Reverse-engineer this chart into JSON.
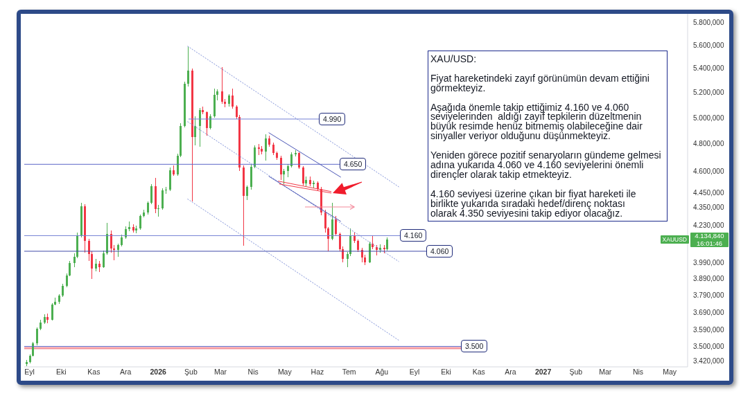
{
  "chart_data": {
    "type": "candlestick",
    "x": [
      "2025-08-29",
      "2025-09-01",
      "2025-09-04",
      "2025-09-08",
      "2025-09-11",
      "2025-09-15",
      "2025-09-18",
      "2025-09-22",
      "2025-09-25",
      "2025-09-29",
      "2025-10-02",
      "2025-10-06",
      "2025-10-09",
      "2025-10-13",
      "2025-10-16",
      "2025-10-20",
      "2025-10-23",
      "2025-10-27",
      "2025-10-30",
      "2025-11-03",
      "2025-11-06",
      "2025-11-10",
      "2025-11-13",
      "2025-11-17",
      "2025-11-20",
      "2025-11-24",
      "2025-11-27",
      "2025-12-01",
      "2025-12-04",
      "2025-12-08",
      "2025-12-11",
      "2025-12-15",
      "2025-12-18",
      "2025-12-22",
      "2025-12-25",
      "2025-12-29",
      "2026-01-01",
      "2026-01-05",
      "2026-01-08",
      "2026-01-12",
      "2026-01-15",
      "2026-01-19",
      "2026-01-22",
      "2026-01-26",
      "2026-01-29",
      "2026-02-02",
      "2026-02-05",
      "2026-02-09",
      "2026-02-12",
      "2026-02-16",
      "2026-02-19",
      "2026-02-23",
      "2026-02-26",
      "2026-03-02",
      "2026-03-05",
      "2026-03-09",
      "2026-03-12",
      "2026-03-16",
      "2026-03-19",
      "2026-03-23",
      "2026-03-26",
      "2026-03-30",
      "2026-04-02",
      "2026-04-06",
      "2026-04-09",
      "2026-04-13",
      "2026-04-16",
      "2026-04-20",
      "2026-04-23",
      "2026-04-27",
      "2026-04-30",
      "2026-05-04",
      "2026-05-07",
      "2026-05-11",
      "2026-05-14",
      "2026-05-18",
      "2026-05-21",
      "2026-05-25",
      "2026-05-28",
      "2026-06-01",
      "2026-06-04",
      "2026-06-08",
      "2026-06-11",
      "2026-06-15",
      "2026-06-18",
      "2026-06-22",
      "2026-06-25",
      "2026-06-29",
      "2026-07-02",
      "2026-07-06",
      "2026-07-09",
      "2026-07-13",
      "2026-07-16",
      "2026-07-20",
      "2026-07-23",
      "2026-07-27",
      "2026-07-30",
      "2026-08-03",
      "2026-08-06"
    ],
    "ohlc": [
      [
        3405,
        3425,
        3395,
        3415
      ],
      [
        3415,
        3458,
        3410,
        3450
      ],
      [
        3450,
        3525,
        3445,
        3515
      ],
      [
        3515,
        3605,
        3505,
        3598
      ],
      [
        3598,
        3650,
        3590,
        3634
      ],
      [
        3634,
        3680,
        3625,
        3666
      ],
      [
        3666,
        3685,
        3630,
        3650
      ],
      [
        3650,
        3745,
        3645,
        3738
      ],
      [
        3738,
        3775,
        3730,
        3754
      ],
      [
        3754,
        3795,
        3740,
        3787
      ],
      [
        3787,
        3860,
        3780,
        3848
      ],
      [
        3848,
        3920,
        3840,
        3911
      ],
      [
        3911,
        4000,
        3905,
        3988
      ],
      [
        3988,
        4045,
        3960,
        4025
      ],
      [
        4025,
        4180,
        4015,
        4160
      ],
      [
        4160,
        4381,
        4150,
        4355
      ],
      [
        4355,
        4370,
        4050,
        4125
      ],
      [
        4125,
        4140,
        4000,
        4044
      ],
      [
        4044,
        4060,
        3890,
        3953
      ],
      [
        3953,
        4010,
        3935,
        3980
      ],
      [
        3980,
        4000,
        3930,
        3962
      ],
      [
        3962,
        4065,
        3955,
        4048
      ],
      [
        4048,
        4242,
        4040,
        4172
      ],
      [
        4172,
        4195,
        4050,
        4079
      ],
      [
        4079,
        4100,
        4005,
        4070
      ],
      [
        4070,
        4110,
        4025,
        4100
      ],
      [
        4100,
        4165,
        4090,
        4150
      ],
      [
        4150,
        4220,
        4140,
        4204
      ],
      [
        4204,
        4255,
        4190,
        4215
      ],
      [
        4215,
        4235,
        4180,
        4195
      ],
      [
        4195,
        4225,
        4175,
        4208
      ],
      [
        4208,
        4300,
        4200,
        4291
      ],
      [
        4291,
        4330,
        4280,
        4314
      ],
      [
        4314,
        4390,
        4300,
        4380
      ],
      [
        4380,
        4510,
        4370,
        4495
      ],
      [
        4495,
        4550,
        4310,
        4338
      ],
      [
        4338,
        4365,
        4285,
        4342
      ],
      [
        4342,
        4480,
        4330,
        4465
      ],
      [
        4465,
        4490,
        4440,
        4470
      ],
      [
        4470,
        4625,
        4460,
        4608
      ],
      [
        4608,
        4640,
        4565,
        4575
      ],
      [
        4575,
        4730,
        4565,
        4713
      ],
      [
        4713,
        4960,
        4700,
        4937
      ],
      [
        4937,
        5290,
        4925,
        5272
      ],
      [
        5272,
        5590,
        5250,
        5380
      ],
      [
        5380,
        5400,
        4390,
        4850
      ],
      [
        4850,
        5010,
        4790,
        4937
      ],
      [
        4937,
        5075,
        4780,
        5060
      ],
      [
        5060,
        5090,
        5030,
        5045
      ],
      [
        5045,
        5050,
        4860,
        4921
      ],
      [
        4921,
        5030,
        4910,
        5012
      ],
      [
        5012,
        5230,
        5000,
        5182
      ],
      [
        5182,
        5225,
        5140,
        5210
      ],
      [
        5210,
        5410,
        5110,
        5127
      ],
      [
        5127,
        5150,
        5080,
        5110
      ],
      [
        5110,
        5190,
        5090,
        5176
      ],
      [
        5176,
        5230,
        5070,
        5090
      ],
      [
        5090,
        5100,
        4990,
        5007
      ],
      [
        5007,
        5020,
        4600,
        4627
      ],
      [
        4627,
        4640,
        4097,
        4427
      ],
      [
        4427,
        4500,
        4400,
        4490
      ],
      [
        4490,
        4650,
        4470,
        4632
      ],
      [
        4632,
        4790,
        4620,
        4774
      ],
      [
        4774,
        4800,
        4715,
        4764
      ],
      [
        4764,
        4785,
        4720,
        4743
      ],
      [
        4743,
        4875,
        4675,
        4842
      ],
      [
        4842,
        4860,
        4780,
        4794
      ],
      [
        4794,
        4810,
        4715,
        4733
      ],
      [
        4733,
        4745,
        4680,
        4698
      ],
      [
        4698,
        4710,
        4540,
        4578
      ],
      [
        4578,
        4615,
        4510,
        4602
      ],
      [
        4602,
        4650,
        4555,
        4637
      ],
      [
        4637,
        4740,
        4625,
        4723
      ],
      [
        4723,
        4755,
        4705,
        4733
      ],
      [
        4733,
        4740,
        4615,
        4627
      ],
      [
        4627,
        4635,
        4500,
        4514
      ],
      [
        4514,
        4560,
        4495,
        4538
      ],
      [
        4538,
        4560,
        4495,
        4509
      ],
      [
        4509,
        4535,
        4480,
        4520
      ],
      [
        4520,
        4530,
        4460,
        4475
      ],
      [
        4475,
        4490,
        4295,
        4315
      ],
      [
        4315,
        4330,
        4180,
        4206
      ],
      [
        4206,
        4215,
        4060,
        4141
      ],
      [
        4141,
        4380,
        4130,
        4268
      ],
      [
        4268,
        4290,
        4160,
        4172
      ],
      [
        4172,
        4180,
        4060,
        4075
      ],
      [
        4075,
        4090,
        3990,
        4013
      ],
      [
        4013,
        4055,
        3960,
        4044
      ],
      [
        4044,
        4205,
        4030,
        4163
      ],
      [
        4163,
        4180,
        4115,
        4127
      ],
      [
        4127,
        4135,
        4055,
        4070
      ],
      [
        4070,
        4080,
        3990,
        4020
      ],
      [
        4020,
        4040,
        3975,
        3992
      ],
      [
        3992,
        4120,
        3985,
        4109
      ],
      [
        4109,
        4160,
        4075,
        4088
      ],
      [
        4088,
        4100,
        4035,
        4070
      ],
      [
        4070,
        4105,
        4050,
        4083
      ],
      [
        4083,
        4100,
        4045,
        4075
      ],
      [
        4075,
        4150,
        4065,
        4134.84
      ]
    ],
    "colors": [
      "#4caf50",
      "#4caf50",
      "#4caf50",
      "#4caf50",
      "#4caf50",
      "#4caf50",
      "#f23645",
      "#4caf50",
      "#4caf50",
      "#4caf50",
      "#4caf50",
      "#4caf50",
      "#4caf50",
      "#4caf50",
      "#4caf50",
      "#4caf50",
      "#f23645",
      "#f23645",
      "#f23645",
      "#4caf50",
      "#f23645",
      "#4caf50",
      "#4caf50",
      "#f23645",
      "#f23645",
      "#4caf50",
      "#4caf50",
      "#4caf50",
      "#4caf50",
      "#f23645",
      "#4caf50",
      "#4caf50",
      "#4caf50",
      "#4caf50",
      "#4caf50",
      "#f23645",
      "#4caf50",
      "#4caf50",
      "#4caf50",
      "#4caf50",
      "#f23645",
      "#4caf50",
      "#4caf50",
      "#4caf50",
      "#4caf50",
      "#f23645",
      "#4caf50",
      "#4caf50",
      "#f23645",
      "#f23645",
      "#4caf50",
      "#4caf50",
      "#4caf50",
      "#f23645",
      "#f23645",
      "#4caf50",
      "#f23645",
      "#f23645",
      "#f23645",
      "#f23645",
      "#4caf50",
      "#4caf50",
      "#4caf50",
      "#f23645",
      "#f23645",
      "#4caf50",
      "#f23645",
      "#f23645",
      "#f23645",
      "#f23645",
      "#4caf50",
      "#4caf50",
      "#4caf50",
      "#4caf50",
      "#f23645",
      "#f23645",
      "#4caf50",
      "#f23645",
      "#4caf50",
      "#f23645",
      "#f23645",
      "#f23645",
      "#f23645",
      "#4caf50",
      "#f23645",
      "#f23645",
      "#f23645",
      "#4caf50",
      "#4caf50",
      "#f23645",
      "#f23645",
      "#f23645",
      "#f23645",
      "#4caf50",
      "#f23645",
      "#f23645",
      "#4caf50",
      "#f23645",
      "#4caf50"
    ],
    "series": [
      {
        "type": "line",
        "color": "#7d8fd8",
        "line_style": "dotted",
        "x": [
          "2026-01-29",
          "2026-08-17"
        ],
        "values": [
          5590,
          4490
        ]
      },
      {
        "type": "line",
        "color": "#7d8fd8",
        "line_style": "dotted",
        "x": [
          "2026-01-29",
          "2026-08-17"
        ],
        "values": [
          4969,
          3996
        ]
      },
      {
        "type": "line",
        "color": "#7d8fd8",
        "line_style": "dotted",
        "x": [
          "2026-01-29",
          "2026-08-17"
        ],
        "values": [
          4404,
          3534
        ]
      },
      {
        "type": "line",
        "color": "#4a55b5",
        "line_style": "solid",
        "x": [
          "2026-04-16",
          "2026-06-23"
        ],
        "values": [
          4884,
          4558
        ]
      },
      {
        "type": "line",
        "color": "#4a55b5",
        "line_style": "solid",
        "x": [
          "2026-04-16",
          "2026-06-23"
        ],
        "values": [
          4563,
          4254
        ]
      },
      {
        "type": "line",
        "color": "#f23645",
        "line_style": "solid",
        "x": [
          "2026-04-25",
          "2026-06-14"
        ],
        "values": [
          4529,
          4456
        ]
      },
      {
        "type": "line",
        "color": "#f23645",
        "line_style": "solid",
        "x": [
          "2026-04-26",
          "2026-06-14"
        ],
        "values": [
          4509,
          4446
        ]
      }
    ],
    "marker": "none",
    "log": "y",
    "xlim": [
      "2025-08-27",
      "2027-05-18"
    ],
    "xticks": [
      {
        "value": "2025-09-01",
        "label": "Eyl"
      },
      {
        "value": "2025-10-01",
        "label": "Eki"
      },
      {
        "value": "2025-11-01",
        "label": "Kas"
      },
      {
        "value": "2025-12-01",
        "label": "Ara"
      },
      {
        "value": "2026-01-01",
        "label": "2026"
      },
      {
        "value": "2026-02-01",
        "label": "Şub"
      },
      {
        "value": "2026-03-01",
        "label": "Mar"
      },
      {
        "value": "2026-04-01",
        "label": "Nis"
      },
      {
        "value": "2026-05-01",
        "label": "May"
      },
      {
        "value": "2026-06-01",
        "label": "Haz"
      },
      {
        "value": "2026-07-01",
        "label": "Tem"
      },
      {
        "value": "2026-08-01",
        "label": "Ağu"
      },
      {
        "value": "2026-09-01",
        "label": "Eyl"
      },
      {
        "value": "2026-10-01",
        "label": "Eki"
      },
      {
        "value": "2026-11-01",
        "label": "Kas"
      },
      {
        "value": "2026-12-01",
        "label": "Ara"
      },
      {
        "value": "2027-01-01",
        "label": "2027"
      },
      {
        "value": "2027-02-01",
        "label": "Şub"
      },
      {
        "value": "2027-03-01",
        "label": "Mar"
      },
      {
        "value": "2027-04-01",
        "label": "Nis"
      },
      {
        "value": "2027-05-01",
        "label": "May"
      }
    ],
    "ylim": [
      3390,
      5880
    ],
    "yticks": [
      {
        "value": 5800,
        "label": "5.800,000"
      },
      {
        "value": 5600,
        "label": "5.600,000"
      },
      {
        "value": 5400,
        "label": "5.400,000"
      },
      {
        "value": 5200,
        "label": "5.200,000"
      },
      {
        "value": 5000,
        "label": "5.000,000"
      },
      {
        "value": 4800,
        "label": "4.800,000"
      },
      {
        "value": 4600,
        "label": "4.600,000"
      },
      {
        "value": 4450,
        "label": "4.450,000"
      },
      {
        "value": 4350,
        "label": "4.350,000"
      },
      {
        "value": 4230,
        "label": "4.230,000"
      },
      {
        "value": 3990,
        "label": "3.990,000"
      },
      {
        "value": 3890,
        "label": "3.890,000"
      },
      {
        "value": 3790,
        "label": "3.790,000"
      },
      {
        "value": 3690,
        "label": "3.690,000"
      },
      {
        "value": 3590,
        "label": "3.590,000"
      },
      {
        "value": 3500,
        "label": "3.500,000"
      },
      {
        "value": 3420,
        "label": "3.420,000"
      }
    ],
    "ref_lines": [
      {
        "axis": "y",
        "value": 4990,
        "label": "4.990",
        "color": "#7480d4"
      },
      {
        "axis": "y",
        "value": 4650,
        "label": "4.650",
        "color": "#5c68c8"
      },
      {
        "axis": "y",
        "value": 4160,
        "label": "4.160",
        "color": "#7480d4"
      },
      {
        "axis": "y",
        "value": 4060,
        "label": "4.060",
        "color": "#3f4aa8"
      },
      {
        "axis": "y",
        "value": 3500,
        "label": "3.500",
        "color": "#5c68c8"
      }
    ],
    "bands": [
      {
        "axis": "y",
        "from": 3485,
        "to": 3496,
        "color": "#f59aa2"
      }
    ],
    "annotations": [
      "4.134,840",
      "16:01:46",
      "XAUUSD",
      "XAU/USD:\n\nFiyat hareketindeki zayıf görünümün devam ettiğini\ngörmekteyiz.\n\nAşağıda önemle takip ettiğimiz 4.160 ve 4.060\nseviyelerinden  aldığı zayıf tepkilerin düzeltmenin\nbüyük resimde henüz bitmemiş olabileceğine dair\nsinyaller veriyor olduğunu düşünmekteyiz.\n\nYeniden görece pozitif senaryoların gündeme gelmesi\nadına yukarıda 4.060 ve 4.160 seviyelerini önemli\ndirençler olarak takip etmekteyiz.\n\n4.160 seviyesi üzerine çıkan bir fiyat hareketi ile\nbirlikte yukarıda sıradaki hedef/direnç noktası\nolarak 4.350 seviyesini takip ediyor olacağız."
    ]
  }
}
